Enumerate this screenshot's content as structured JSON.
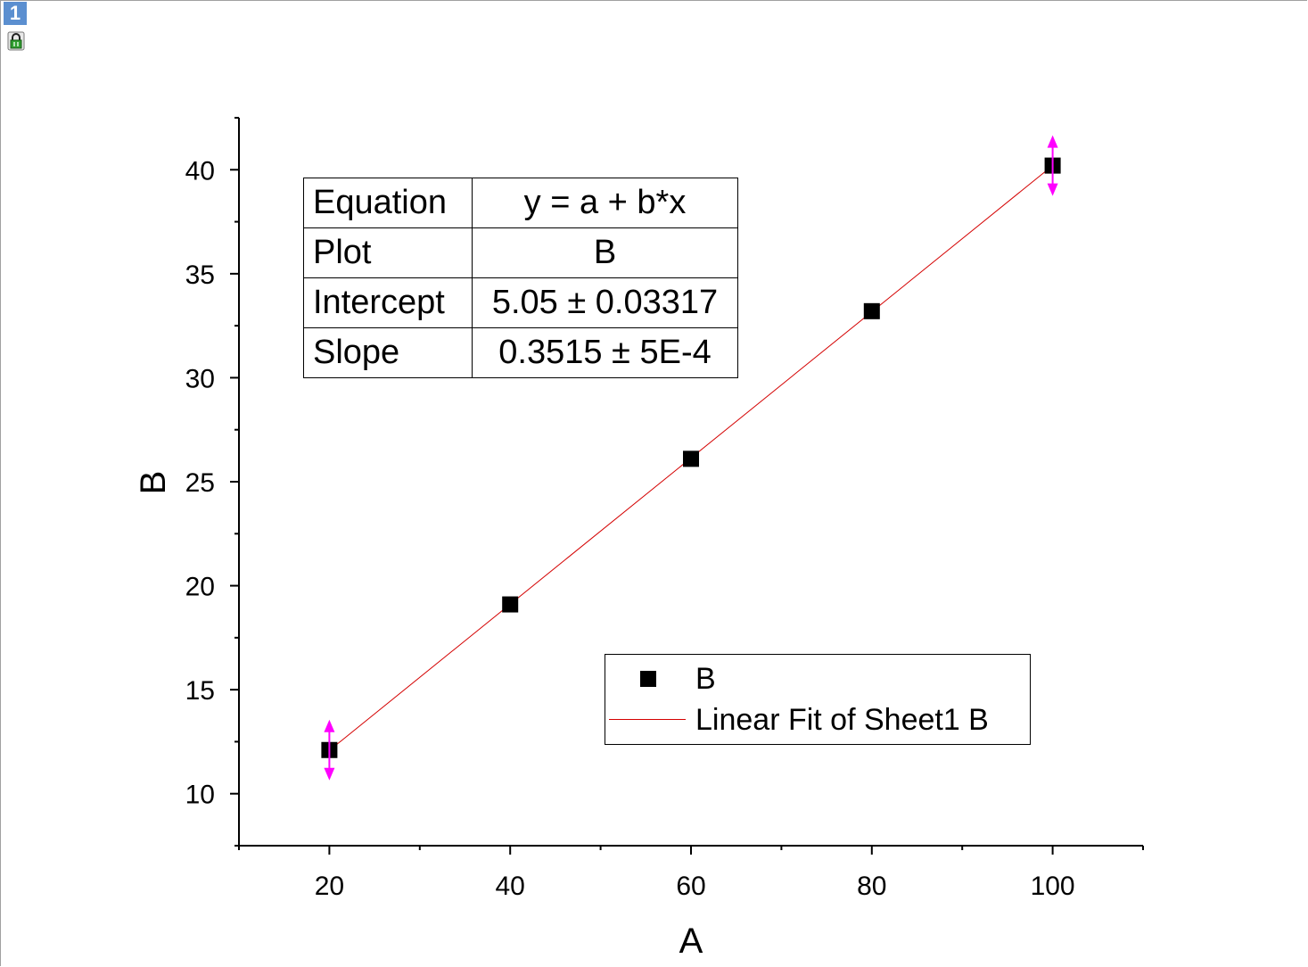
{
  "window": {
    "layer_number": "1"
  },
  "icons": {
    "layer_lock": "lock-icon"
  },
  "fit_table": {
    "rows": [
      {
        "label": "Equation",
        "value": "y = a + b*x"
      },
      {
        "label": "Plot",
        "value": "B"
      },
      {
        "label": "Intercept",
        "value": "5.05 ± 0.03317"
      },
      {
        "label": "Slope",
        "value": "0.3515 ± 5E-4"
      }
    ]
  },
  "legend": {
    "entries": [
      {
        "label": "B"
      },
      {
        "label": "Linear Fit of Sheet1 B"
      }
    ]
  },
  "colors": {
    "points": "#000000",
    "fit_line": "#d40000",
    "data_reader": "#ff00ff",
    "layer_badge": "#5b8fd0"
  },
  "chart_data": {
    "type": "scatter",
    "xlabel": "A",
    "ylabel": "B",
    "xlim": [
      10,
      110
    ],
    "ylim": [
      7.5,
      42.5
    ],
    "x_ticks": [
      20,
      40,
      60,
      80,
      100
    ],
    "y_ticks": [
      10,
      15,
      20,
      25,
      30,
      35,
      40
    ],
    "grid": false,
    "legend_position": "bottom-right",
    "series": [
      {
        "name": "B",
        "x": [
          20,
          40,
          60,
          80,
          100
        ],
        "y": [
          12.1,
          19.1,
          26.1,
          33.2,
          40.2
        ],
        "marker": "square"
      }
    ],
    "fit": {
      "name": "Linear Fit of Sheet1 B",
      "intercept": 5.05,
      "slope": 0.3515,
      "x_range": [
        20,
        100
      ]
    },
    "data_reader_points": [
      {
        "x": 20,
        "y": 12.1
      },
      {
        "x": 100,
        "y": 40.2
      }
    ]
  }
}
